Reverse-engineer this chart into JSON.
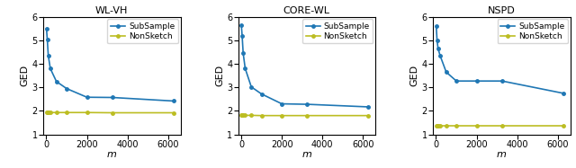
{
  "subplots": [
    {
      "title": "WL-VH",
      "x": [
        10,
        50,
        100,
        200,
        500,
        1000,
        2000,
        3250,
        6250
      ],
      "subsample": [
        5.5,
        5.05,
        4.35,
        3.8,
        3.25,
        2.95,
        2.58,
        2.57,
        2.42
      ],
      "nonsketch": [
        1.95,
        1.95,
        1.94,
        1.93,
        1.93,
        1.93,
        1.93,
        1.92,
        1.92
      ]
    },
    {
      "title": "CORE-WL",
      "x": [
        10,
        50,
        100,
        200,
        500,
        1000,
        2000,
        3250,
        6250
      ],
      "subsample": [
        5.65,
        5.18,
        4.45,
        3.8,
        3.02,
        2.72,
        2.3,
        2.28,
        2.17
      ],
      "nonsketch": [
        1.82,
        1.82,
        1.81,
        1.81,
        1.81,
        1.8,
        1.8,
        1.8,
        1.8
      ]
    },
    {
      "title": "NSPD",
      "x": [
        10,
        50,
        100,
        200,
        500,
        1000,
        2000,
        3250,
        6250
      ],
      "subsample": [
        5.6,
        5.0,
        4.65,
        4.35,
        3.65,
        3.27,
        3.27,
        3.27,
        2.75
      ],
      "nonsketch": [
        1.38,
        1.38,
        1.38,
        1.38,
        1.38,
        1.38,
        1.38,
        1.38,
        1.38
      ]
    }
  ],
  "xlabel": "m",
  "ylabel": "GED",
  "ylim": [
    1,
    6
  ],
  "yticks": [
    1,
    2,
    3,
    4,
    5,
    6
  ],
  "xticks": [
    0,
    2000,
    4000,
    6000
  ],
  "xlim": [
    -150,
    6600
  ],
  "subsample_color": "#1f77b4",
  "nonsketch_color": "#bcbd22",
  "legend_labels": [
    "SubSample",
    "NonSketch"
  ]
}
